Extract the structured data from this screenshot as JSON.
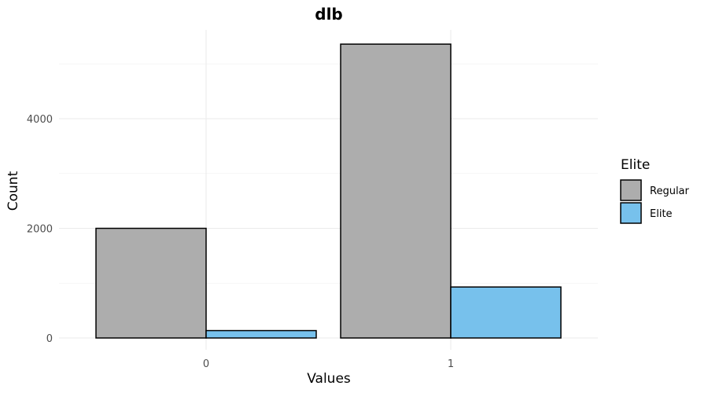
{
  "chart_data": {
    "type": "bar",
    "title": "dlb",
    "xlabel": "Values",
    "ylabel": "Count",
    "categories": [
      "0",
      "1"
    ],
    "series": [
      {
        "name": "Regular",
        "values": [
          2000,
          5360
        ],
        "color": "#adadad"
      },
      {
        "name": "Elite",
        "values": [
          135,
          930
        ],
        "color": "#77c1ec"
      }
    ],
    "ylim": [
      0,
      5600
    ],
    "yticks": [
      0,
      2000,
      4000
    ],
    "ytick_labels": [
      "0",
      "2000",
      "4000"
    ],
    "grid": true,
    "legend": {
      "title": "Elite",
      "position": "right"
    }
  }
}
